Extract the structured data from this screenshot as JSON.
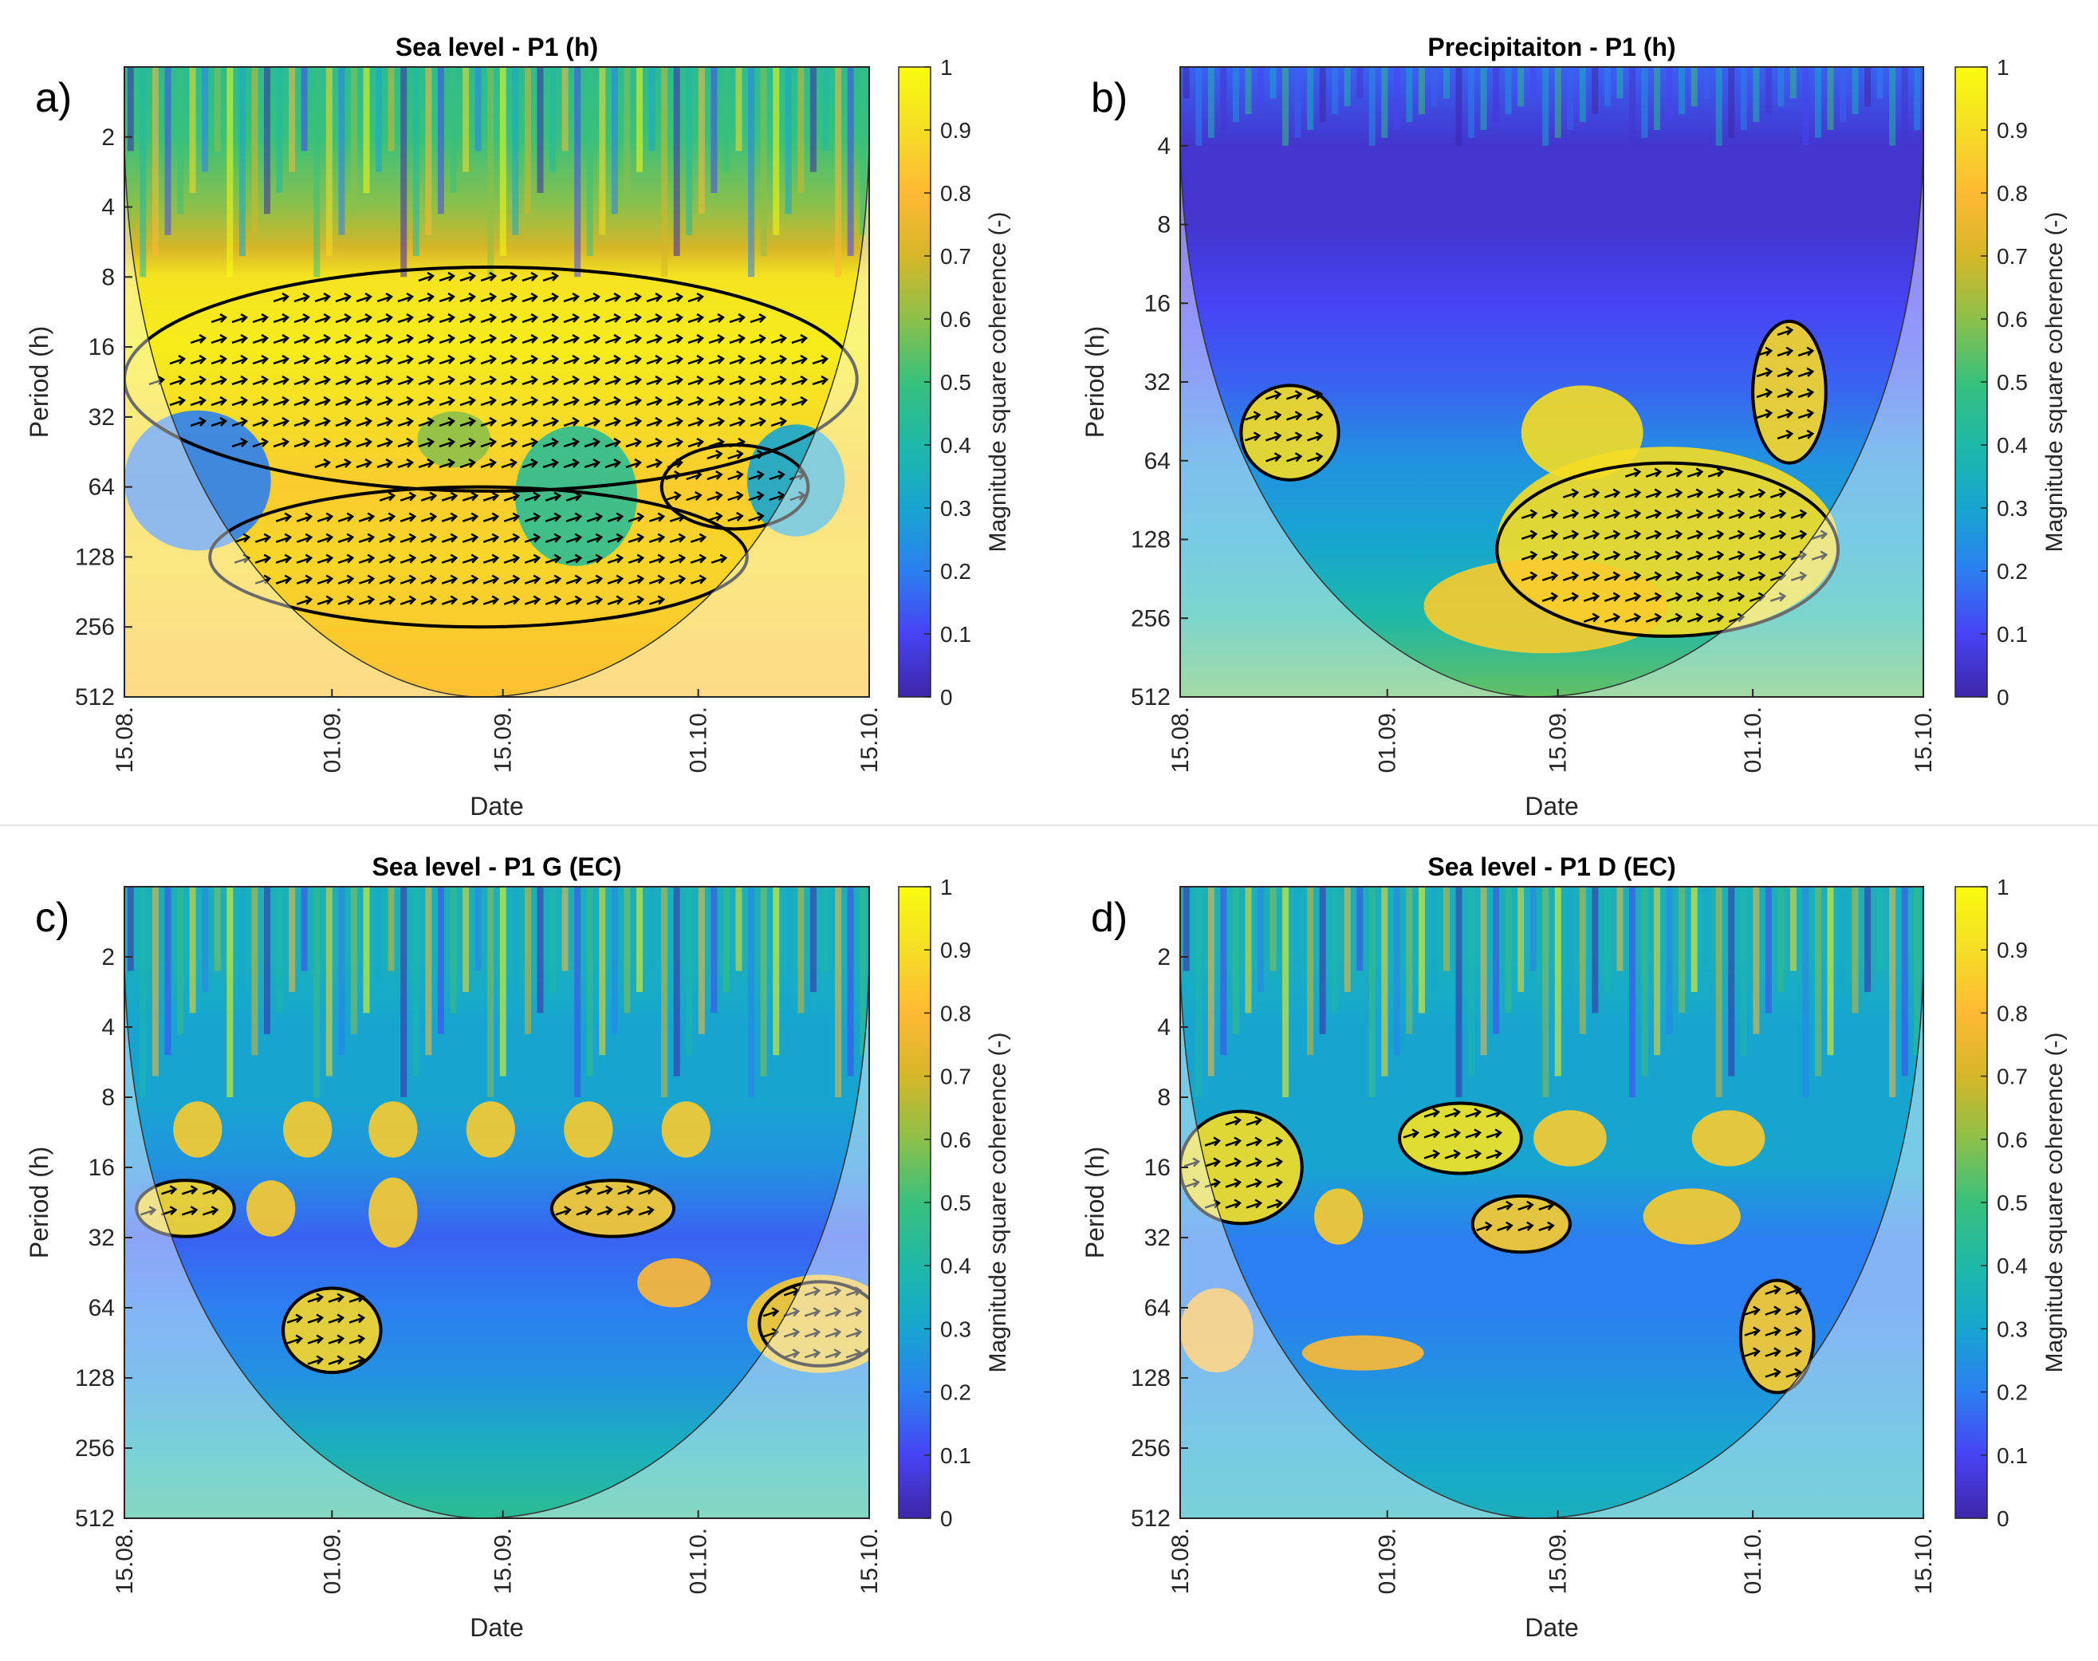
{
  "figure": {
    "colorbar_label": "Magnitude square coherence (-)",
    "colorbar_ticks": [
      "0",
      "0.1",
      "0.2",
      "0.3",
      "0.4",
      "0.5",
      "0.6",
      "0.7",
      "0.8",
      "0.9",
      "1"
    ],
    "colormap": [
      "#3e26a8",
      "#4743f4",
      "#2c7ff0",
      "#17a5d0",
      "#1fb8a8",
      "#38c07c",
      "#8cc04a",
      "#d6b628",
      "#feb934",
      "#f5dd25",
      "#f9fb0e"
    ],
    "cone_fill": "#ffffff",
    "arrow_color": "#000000",
    "contour_color": "#000000"
  },
  "chart_data": [
    {
      "type": "heatmap",
      "panel_label": "a)",
      "title": "Sea level - P1 (h)",
      "xlabel": "Date",
      "ylabel": "Period (h)",
      "x_ticks": [
        "15.08.",
        "01.09.",
        "15.09.",
        "01.10.",
        "15.10."
      ],
      "y_ticks": [
        "2",
        "4",
        "8",
        "16",
        "32",
        "64",
        "128",
        "256",
        "512"
      ],
      "y_scale": "log2",
      "ylim": [
        1,
        512
      ],
      "clim": [
        0,
        1
      ],
      "bands": [
        {
          "p": 1,
          "v": 0.45
        },
        {
          "p": 2,
          "v": 0.5
        },
        {
          "p": 4,
          "v": 0.6
        },
        {
          "p": 6,
          "v": 0.7
        },
        {
          "p": 8,
          "v": 0.92
        },
        {
          "p": 16,
          "v": 0.95
        },
        {
          "p": 32,
          "v": 0.9
        },
        {
          "p": 64,
          "v": 0.85
        },
        {
          "p": 128,
          "v": 0.88
        },
        {
          "p": 256,
          "v": 0.85
        },
        {
          "p": 512,
          "v": 0.82
        }
      ],
      "blobs": [
        {
          "d": 6,
          "p": 60,
          "rd": 6,
          "rp": 1.0,
          "v": 0.2
        },
        {
          "d": 37,
          "p": 70,
          "rd": 5,
          "rp": 1.0,
          "v": 0.45
        },
        {
          "d": 55,
          "p": 60,
          "rd": 4,
          "rp": 0.8,
          "v": 0.3
        },
        {
          "d": 27,
          "p": 40,
          "rd": 3,
          "rp": 0.4,
          "v": 0.6
        }
      ],
      "significant_regions": [
        {
          "d": 30,
          "p": 22,
          "rd": 30,
          "rp": 1.6
        },
        {
          "d": 29,
          "p": 128,
          "rd": 22,
          "rp": 1.0
        },
        {
          "d": 50,
          "p": 64,
          "rd": 6,
          "rp": 0.6
        }
      ]
    },
    {
      "type": "heatmap",
      "panel_label": "b)",
      "title": "Precipitaiton - P1 (h)",
      "xlabel": "Date",
      "ylabel": "Period (h)",
      "x_ticks": [
        "15.08.",
        "01.09.",
        "15.09.",
        "01.10.",
        "15.10."
      ],
      "y_ticks": [
        "4",
        "8",
        "16",
        "32",
        "64",
        "128",
        "256",
        "512"
      ],
      "y_scale": "log2",
      "ylim": [
        2,
        512
      ],
      "clim": [
        0,
        1
      ],
      "bands": [
        {
          "p": 2,
          "v": 0.15
        },
        {
          "p": 4,
          "v": 0.05
        },
        {
          "p": 8,
          "v": 0.05
        },
        {
          "p": 16,
          "v": 0.1
        },
        {
          "p": 32,
          "v": 0.15
        },
        {
          "p": 64,
          "v": 0.25
        },
        {
          "p": 128,
          "v": 0.3
        },
        {
          "p": 256,
          "v": 0.4
        },
        {
          "p": 512,
          "v": 0.55
        }
      ],
      "blobs": [
        {
          "d": 9,
          "p": 50,
          "rd": 4,
          "rp": 0.6,
          "v": 0.9
        },
        {
          "d": 40,
          "p": 130,
          "rd": 14,
          "rp": 1.2,
          "v": 0.9
        },
        {
          "d": 30,
          "p": 230,
          "rd": 10,
          "rp": 0.6,
          "v": 0.85
        },
        {
          "d": 33,
          "p": 50,
          "rd": 5,
          "rp": 0.6,
          "v": 0.9
        },
        {
          "d": 50,
          "p": 35,
          "rd": 3,
          "rp": 0.9,
          "v": 0.88
        }
      ],
      "significant_regions": [
        {
          "d": 9,
          "p": 50,
          "rd": 4,
          "rp": 0.6
        },
        {
          "d": 40,
          "p": 140,
          "rd": 14,
          "rp": 1.1
        },
        {
          "d": 50,
          "p": 35,
          "rd": 3,
          "rp": 0.9
        }
      ]
    },
    {
      "type": "heatmap",
      "panel_label": "c)",
      "title": "Sea level - P1 G (EC)",
      "xlabel": "Date",
      "ylabel": "Period (h)",
      "x_ticks": [
        "15.08.",
        "01.09.",
        "15.09.",
        "01.10.",
        "15.10."
      ],
      "y_ticks": [
        "2",
        "4",
        "8",
        "16",
        "32",
        "64",
        "128",
        "256",
        "512"
      ],
      "y_scale": "log2",
      "ylim": [
        1,
        512
      ],
      "clim": [
        0,
        1
      ],
      "bands": [
        {
          "p": 1,
          "v": 0.35
        },
        {
          "p": 2,
          "v": 0.35
        },
        {
          "p": 4,
          "v": 0.3
        },
        {
          "p": 8,
          "v": 0.3
        },
        {
          "p": 16,
          "v": 0.25
        },
        {
          "p": 32,
          "v": 0.15
        },
        {
          "p": 64,
          "v": 0.2
        },
        {
          "p": 128,
          "v": 0.25
        },
        {
          "p": 256,
          "v": 0.35
        },
        {
          "p": 512,
          "v": 0.45
        }
      ],
      "blobs": [
        {
          "d": 6,
          "p": 11,
          "rd": 2,
          "rp": 0.4,
          "v": 0.85
        },
        {
          "d": 15,
          "p": 11,
          "rd": 2,
          "rp": 0.4,
          "v": 0.85
        },
        {
          "d": 22,
          "p": 11,
          "rd": 2,
          "rp": 0.4,
          "v": 0.85
        },
        {
          "d": 30,
          "p": 11,
          "rd": 2,
          "rp": 0.4,
          "v": 0.85
        },
        {
          "d": 38,
          "p": 11,
          "rd": 2,
          "rp": 0.4,
          "v": 0.85
        },
        {
          "d": 46,
          "p": 11,
          "rd": 2,
          "rp": 0.4,
          "v": 0.85
        },
        {
          "d": 5,
          "p": 24,
          "rd": 4,
          "rp": 0.4,
          "v": 0.88
        },
        {
          "d": 12,
          "p": 24,
          "rd": 2,
          "rp": 0.4,
          "v": 0.85
        },
        {
          "d": 22,
          "p": 25,
          "rd": 2,
          "rp": 0.5,
          "v": 0.85
        },
        {
          "d": 40,
          "p": 24,
          "rd": 5,
          "rp": 0.4,
          "v": 0.85
        },
        {
          "d": 17,
          "p": 80,
          "rd": 4,
          "rp": 0.6,
          "v": 0.88
        },
        {
          "d": 57,
          "p": 75,
          "rd": 6,
          "rp": 0.7,
          "v": 0.85
        },
        {
          "d": 45,
          "p": 50,
          "rd": 3,
          "rp": 0.35,
          "v": 0.8
        }
      ],
      "significant_regions": [
        {
          "d": 5,
          "p": 24,
          "rd": 4,
          "rp": 0.4
        },
        {
          "d": 17,
          "p": 80,
          "rd": 4,
          "rp": 0.6
        },
        {
          "d": 40,
          "p": 24,
          "rd": 5,
          "rp": 0.4
        },
        {
          "d": 57,
          "p": 75,
          "rd": 5,
          "rp": 0.6
        }
      ]
    },
    {
      "type": "heatmap",
      "panel_label": "d)",
      "title": "Sea level - P1 D (EC)",
      "xlabel": "Date",
      "ylabel": "Period (h)",
      "x_ticks": [
        "15.08.",
        "01.09.",
        "15.09.",
        "01.10.",
        "15.10."
      ],
      "y_ticks": [
        "2",
        "4",
        "8",
        "16",
        "32",
        "64",
        "128",
        "256",
        "512"
      ],
      "y_scale": "log2",
      "ylim": [
        1,
        512
      ],
      "clim": [
        0,
        1
      ],
      "bands": [
        {
          "p": 1,
          "v": 0.35
        },
        {
          "p": 2,
          "v": 0.35
        },
        {
          "p": 4,
          "v": 0.3
        },
        {
          "p": 8,
          "v": 0.3
        },
        {
          "p": 16,
          "v": 0.3
        },
        {
          "p": 32,
          "v": 0.2
        },
        {
          "p": 64,
          "v": 0.2
        },
        {
          "p": 128,
          "v": 0.25
        },
        {
          "p": 256,
          "v": 0.3
        },
        {
          "p": 512,
          "v": 0.35
        }
      ],
      "blobs": [
        {
          "d": 5,
          "p": 16,
          "rd": 5,
          "rp": 0.8,
          "v": 0.9
        },
        {
          "d": 23,
          "p": 12,
          "rd": 5,
          "rp": 0.5,
          "v": 0.92
        },
        {
          "d": 32,
          "p": 12,
          "rd": 3,
          "rp": 0.4,
          "v": 0.85
        },
        {
          "d": 45,
          "p": 12,
          "rd": 3,
          "rp": 0.4,
          "v": 0.85
        },
        {
          "d": 13,
          "p": 26,
          "rd": 2,
          "rp": 0.4,
          "v": 0.85
        },
        {
          "d": 28,
          "p": 28,
          "rd": 4,
          "rp": 0.4,
          "v": 0.85
        },
        {
          "d": 42,
          "p": 26,
          "rd": 4,
          "rp": 0.4,
          "v": 0.85
        },
        {
          "d": 15,
          "p": 100,
          "rd": 5,
          "rp": 0.25,
          "v": 0.8
        },
        {
          "d": 49,
          "p": 85,
          "rd": 3,
          "rp": 0.8,
          "v": 0.85
        },
        {
          "d": 3,
          "p": 80,
          "rd": 3,
          "rp": 0.6,
          "v": 0.8
        }
      ],
      "significant_regions": [
        {
          "d": 5,
          "p": 16,
          "rd": 5,
          "rp": 0.8
        },
        {
          "d": 23,
          "p": 12,
          "rd": 5,
          "rp": 0.5
        },
        {
          "d": 28,
          "p": 28,
          "rd": 4,
          "rp": 0.4
        },
        {
          "d": 49,
          "p": 85,
          "rd": 3,
          "rp": 0.8
        }
      ]
    }
  ]
}
